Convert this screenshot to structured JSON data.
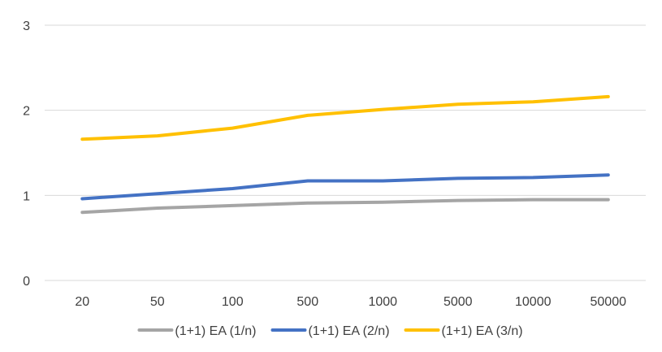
{
  "chart_data": {
    "type": "line",
    "title": "",
    "xlabel": "",
    "ylabel": "",
    "categories": [
      "20",
      "50",
      "100",
      "500",
      "1000",
      "5000",
      "10000",
      "50000"
    ],
    "ylim": [
      0,
      3
    ],
    "yticks": [
      "0",
      "1",
      "2",
      "3"
    ],
    "grid": true,
    "legend_position": "bottom",
    "series": [
      {
        "name": "(1+1) EA (1/n)",
        "color": "#A5A5A5",
        "values": [
          0.8,
          0.85,
          0.88,
          0.91,
          0.92,
          0.94,
          0.95,
          0.95
        ]
      },
      {
        "name": "(1+1) EA (2/n)",
        "color": "#4472C4",
        "values": [
          0.96,
          1.02,
          1.08,
          1.17,
          1.17,
          1.2,
          1.21,
          1.24
        ]
      },
      {
        "name": "(1+1) EA (3/n)",
        "color": "#FFC000",
        "values": [
          1.66,
          1.7,
          1.79,
          1.94,
          2.01,
          2.07,
          2.1,
          2.16
        ]
      }
    ]
  }
}
